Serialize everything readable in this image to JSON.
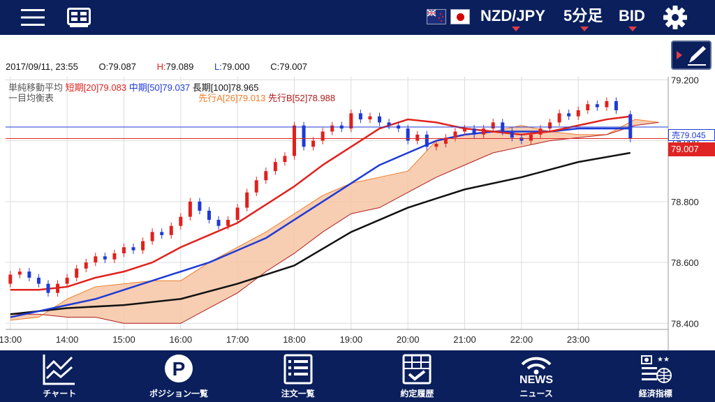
{
  "header": {
    "menu_icon": "hamburger-menu-icon",
    "layout_icon": "chart-layout-icon",
    "flags": [
      "nz-flag-icon",
      "jp-flag-icon"
    ],
    "pair": "NZD/JPY",
    "interval": "5分足",
    "side": "BID",
    "settings_icon": "gear-icon",
    "caret_color": "#e23c4a"
  },
  "info": {
    "datetime": "2017/09/11, 23:55",
    "open_label": "O:",
    "open": "79.087",
    "high_label": "H:",
    "high": "79.089",
    "low_label": "L:",
    "low": "79.000",
    "close_label": "C:",
    "close": "79.007",
    "draw_icon": "pen-draw-icon"
  },
  "legend": {
    "ma_title": "単純移動平均",
    "ma_short": "短期[20]79.083",
    "ma_mid": "中期[50]79.037",
    "ma_long": "長期[100]78.965",
    "ichimoku_title": "一目均衡表",
    "span_a": "先行A[26]79.013",
    "span_b": "先行B[52]78.988"
  },
  "price_tags": {
    "sell": "売79.045",
    "close": "79.007"
  },
  "colors": {
    "nav_bg": "#0a1f5c",
    "up": "#e0211c",
    "down": "#1e3ad6",
    "ma_short": "#e0211c",
    "ma_mid": "#1e3ad6",
    "ma_long": "#111111",
    "cloud_fill": "#f6c6a4",
    "cloud_edge_a": "#ee7b2a",
    "cloud_edge_b": "#b01c1c"
  },
  "chart_data": {
    "type": "candlestick",
    "x_ticks": [
      "13:00",
      "14:00",
      "15:00",
      "16:00",
      "17:00",
      "18:00",
      "19:00",
      "20:00",
      "21:00",
      "22:00",
      "23:00"
    ],
    "y_ticks": [
      "79.200",
      "79.000",
      "78.800",
      "78.600",
      "78.400"
    ],
    "ylim": [
      78.38,
      79.21
    ],
    "grid": true,
    "current_sell": 79.045,
    "current_close": 79.007,
    "series": [
      {
        "name": "短期[20]",
        "type": "line",
        "x": [
          "13:00",
          "13:30",
          "14:00",
          "14:30",
          "15:00",
          "15:30",
          "16:00",
          "16:30",
          "17:00",
          "17:30",
          "18:00",
          "18:30",
          "19:00",
          "19:30",
          "20:00",
          "20:30",
          "21:00",
          "21:30",
          "22:00",
          "22:30",
          "23:00",
          "23:30",
          "23:55"
        ],
        "values": [
          78.51,
          78.51,
          78.52,
          78.55,
          78.57,
          78.6,
          78.65,
          78.69,
          78.73,
          78.79,
          78.85,
          78.92,
          78.98,
          79.04,
          79.07,
          79.06,
          79.04,
          79.03,
          79.02,
          79.03,
          79.05,
          79.07,
          79.08
        ]
      },
      {
        "name": "中期[50]",
        "type": "line",
        "x": [
          "13:00",
          "13:30",
          "14:00",
          "14:30",
          "15:00",
          "15:30",
          "16:00",
          "16:30",
          "17:00",
          "17:30",
          "18:00",
          "18:30",
          "19:00",
          "19:30",
          "20:00",
          "20:30",
          "21:00",
          "21:30",
          "22:00",
          "22:30",
          "23:00",
          "23:30",
          "23:55"
        ],
        "values": [
          78.42,
          78.44,
          78.46,
          78.48,
          78.51,
          78.54,
          78.57,
          78.6,
          78.64,
          78.68,
          78.74,
          78.8,
          78.86,
          78.92,
          78.96,
          79.0,
          79.02,
          79.03,
          79.03,
          79.03,
          79.04,
          79.04,
          79.04
        ]
      },
      {
        "name": "長期[100]",
        "type": "line",
        "x": [
          "13:00",
          "14:00",
          "15:00",
          "16:00",
          "17:00",
          "18:00",
          "19:00",
          "20:00",
          "21:00",
          "22:00",
          "23:00",
          "23:55"
        ],
        "values": [
          78.43,
          78.45,
          78.46,
          78.48,
          78.53,
          78.59,
          78.7,
          78.78,
          78.84,
          78.88,
          78.93,
          78.96
        ]
      },
      {
        "name": "先行A[26]",
        "type": "line",
        "x": [
          "13:00",
          "13:30",
          "14:00",
          "14:30",
          "15:00",
          "15:30",
          "16:00",
          "16:30",
          "17:00",
          "17:30",
          "18:00",
          "18:30",
          "19:00",
          "19:30",
          "20:00",
          "20:30",
          "21:00",
          "21:30",
          "22:00",
          "22:30",
          "23:00",
          "23:30",
          "24:00",
          "24:25"
        ],
        "values": [
          78.41,
          78.42,
          78.48,
          78.52,
          78.53,
          78.54,
          78.54,
          78.6,
          78.65,
          78.7,
          78.76,
          78.82,
          78.86,
          78.88,
          78.9,
          79.0,
          79.02,
          79.03,
          79.05,
          79.03,
          79.02,
          79.02,
          79.07,
          79.06
        ]
      },
      {
        "name": "先行B[52]",
        "type": "line",
        "x": [
          "13:00",
          "13:30",
          "14:00",
          "14:30",
          "15:00",
          "15:30",
          "16:00",
          "16:30",
          "17:00",
          "17:30",
          "18:00",
          "18:30",
          "19:00",
          "19:30",
          "20:00",
          "20:30",
          "21:00",
          "21:30",
          "22:00",
          "22:30",
          "23:00",
          "23:30",
          "24:00",
          "24:25"
        ],
        "values": [
          78.43,
          78.43,
          78.42,
          78.42,
          78.4,
          78.4,
          78.4,
          78.45,
          78.5,
          78.57,
          78.63,
          78.7,
          78.76,
          78.78,
          78.83,
          78.88,
          78.92,
          78.96,
          78.98,
          79.0,
          79.01,
          79.02,
          79.05,
          79.06
        ]
      }
    ],
    "candles": [
      {
        "t": "13:00",
        "o": 78.53,
        "c": 78.56
      },
      {
        "t": "13:10",
        "o": 78.56,
        "c": 78.57
      },
      {
        "t": "13:20",
        "o": 78.57,
        "c": 78.55
      },
      {
        "t": "13:30",
        "o": 78.55,
        "c": 78.53
      },
      {
        "t": "13:40",
        "o": 78.53,
        "c": 78.5
      },
      {
        "t": "13:50",
        "o": 78.5,
        "c": 78.53
      },
      {
        "t": "14:00",
        "o": 78.53,
        "c": 78.55
      },
      {
        "t": "14:10",
        "o": 78.55,
        "c": 78.58
      },
      {
        "t": "14:20",
        "o": 78.58,
        "c": 78.6
      },
      {
        "t": "14:30",
        "o": 78.6,
        "c": 78.62
      },
      {
        "t": "14:40",
        "o": 78.62,
        "c": 78.61
      },
      {
        "t": "14:50",
        "o": 78.61,
        "c": 78.63
      },
      {
        "t": "15:00",
        "o": 78.63,
        "c": 78.65
      },
      {
        "t": "15:10",
        "o": 78.65,
        "c": 78.64
      },
      {
        "t": "15:20",
        "o": 78.64,
        "c": 78.67
      },
      {
        "t": "15:30",
        "o": 78.67,
        "c": 78.7
      },
      {
        "t": "15:40",
        "o": 78.7,
        "c": 78.69
      },
      {
        "t": "15:50",
        "o": 78.69,
        "c": 78.72
      },
      {
        "t": "16:00",
        "o": 78.72,
        "c": 78.75
      },
      {
        "t": "16:10",
        "o": 78.75,
        "c": 78.8
      },
      {
        "t": "16:20",
        "o": 78.8,
        "c": 78.77
      },
      {
        "t": "16:30",
        "o": 78.77,
        "c": 78.74
      },
      {
        "t": "16:40",
        "o": 78.74,
        "c": 78.72
      },
      {
        "t": "16:50",
        "o": 78.72,
        "c": 78.74
      },
      {
        "t": "17:00",
        "o": 78.74,
        "c": 78.78
      },
      {
        "t": "17:10",
        "o": 78.78,
        "c": 78.83
      },
      {
        "t": "17:20",
        "o": 78.83,
        "c": 78.87
      },
      {
        "t": "17:30",
        "o": 78.87,
        "c": 78.9
      },
      {
        "t": "17:40",
        "o": 78.9,
        "c": 78.93
      },
      {
        "t": "17:50",
        "o": 78.93,
        "c": 78.95
      },
      {
        "t": "18:00",
        "o": 78.95,
        "c": 79.05
      },
      {
        "t": "18:10",
        "o": 79.05,
        "c": 78.98
      },
      {
        "t": "18:20",
        "o": 78.98,
        "c": 79.0
      },
      {
        "t": "18:30",
        "o": 79.0,
        "c": 79.03
      },
      {
        "t": "18:40",
        "o": 79.03,
        "c": 79.05
      },
      {
        "t": "18:50",
        "o": 79.05,
        "c": 79.04
      },
      {
        "t": "19:00",
        "o": 79.04,
        "c": 79.09
      },
      {
        "t": "19:10",
        "o": 79.09,
        "c": 79.07
      },
      {
        "t": "19:20",
        "o": 79.07,
        "c": 79.08
      },
      {
        "t": "19:30",
        "o": 79.08,
        "c": 79.06
      },
      {
        "t": "19:40",
        "o": 79.06,
        "c": 79.05
      },
      {
        "t": "19:50",
        "o": 79.05,
        "c": 79.04
      },
      {
        "t": "20:00",
        "o": 79.04,
        "c": 79.0
      },
      {
        "t": "20:10",
        "o": 79.0,
        "c": 79.02
      },
      {
        "t": "20:20",
        "o": 79.02,
        "c": 78.98
      },
      {
        "t": "20:30",
        "o": 78.98,
        "c": 78.99
      },
      {
        "t": "20:40",
        "o": 78.99,
        "c": 79.01
      },
      {
        "t": "20:50",
        "o": 79.01,
        "c": 79.03
      },
      {
        "t": "21:00",
        "o": 79.03,
        "c": 79.04
      },
      {
        "t": "21:10",
        "o": 79.04,
        "c": 79.02
      },
      {
        "t": "21:20",
        "o": 79.02,
        "c": 79.04
      },
      {
        "t": "21:30",
        "o": 79.04,
        "c": 79.06
      },
      {
        "t": "21:40",
        "o": 79.06,
        "c": 79.03
      },
      {
        "t": "21:50",
        "o": 79.03,
        "c": 79.01
      },
      {
        "t": "22:00",
        "o": 79.01,
        "c": 79.0
      },
      {
        "t": "22:10",
        "o": 79.0,
        "c": 79.02
      },
      {
        "t": "22:20",
        "o": 79.02,
        "c": 79.04
      },
      {
        "t": "22:30",
        "o": 79.04,
        "c": 79.06
      },
      {
        "t": "22:40",
        "o": 79.06,
        "c": 79.09
      },
      {
        "t": "22:50",
        "o": 79.09,
        "c": 79.08
      },
      {
        "t": "23:00",
        "o": 79.08,
        "c": 79.1
      },
      {
        "t": "23:10",
        "o": 79.1,
        "c": 79.12
      },
      {
        "t": "23:20",
        "o": 79.12,
        "c": 79.11
      },
      {
        "t": "23:30",
        "o": 79.11,
        "c": 79.13
      },
      {
        "t": "23:40",
        "o": 79.13,
        "c": 79.1
      },
      {
        "t": "23:55",
        "o": 79.087,
        "c": 79.007
      }
    ]
  },
  "nav": {
    "items": [
      {
        "label": "チャート",
        "icon": "line-chart-icon"
      },
      {
        "label": "ポジション一覧",
        "icon": "position-p-icon"
      },
      {
        "label": "注文一覧",
        "icon": "order-list-icon"
      },
      {
        "label": "約定履歴",
        "icon": "execution-history-icon"
      },
      {
        "label": "ニュース",
        "icon": "news-wifi-icon",
        "icon_text": "NEWS"
      },
      {
        "label": "経済指標",
        "icon": "economic-indicator-icon"
      }
    ]
  }
}
